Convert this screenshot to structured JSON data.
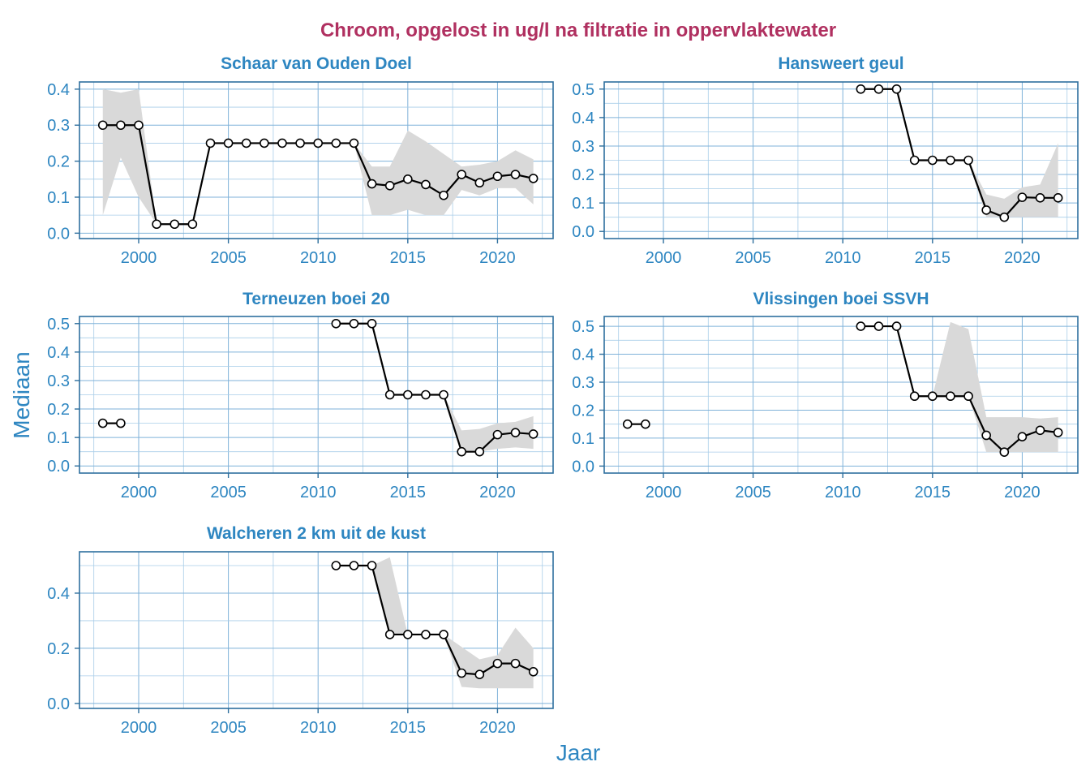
{
  "figure": {
    "title": "Chroom, opgelost in ug/l na filtratie in oppervlaktewater",
    "xlabel": "Jaar",
    "ylabel": "Mediaan"
  },
  "colors": {
    "title": "#b03060",
    "axis_text": "#2e86c1",
    "ribbon": "#d9d9d9",
    "line": "#000000"
  },
  "chart_data": [
    {
      "type": "line",
      "title": "Schaar van Ouden Doel",
      "xlim": [
        1996.7,
        2023.1
      ],
      "ylim": [
        -0.015,
        0.42
      ],
      "x_ticks": [
        2000,
        2005,
        2010,
        2015,
        2020
      ],
      "y_ticks": [
        0.0,
        0.1,
        0.2,
        0.3,
        0.4
      ],
      "y_tick_labels": [
        "0.0",
        "0.1",
        "0.2",
        "0.3",
        "0.4"
      ],
      "series": [
        {
          "x": [
            1998,
            1999,
            2000,
            2001,
            2002,
            2003,
            2004,
            2005,
            2006,
            2007,
            2008,
            2009,
            2010,
            2011,
            2012,
            2013,
            2014,
            2015,
            2016,
            2017,
            2018,
            2019,
            2020,
            2021,
            2022
          ],
          "y": [
            0.3,
            0.3,
            0.3,
            0.025,
            0.025,
            0.025,
            0.25,
            0.25,
            0.25,
            0.25,
            0.25,
            0.25,
            0.25,
            0.25,
            0.25,
            0.137,
            0.132,
            0.15,
            0.135,
            0.105,
            0.163,
            0.14,
            0.158,
            0.163,
            0.152
          ],
          "lower": [
            0.05,
            0.21,
            0.1,
            0.025,
            0.025,
            0.025,
            0.25,
            0.25,
            0.25,
            0.25,
            0.25,
            0.25,
            0.25,
            0.25,
            0.25,
            0.05,
            0.05,
            0.065,
            0.05,
            0.05,
            0.12,
            0.105,
            0.125,
            0.125,
            0.08
          ],
          "upper": [
            0.4,
            0.39,
            0.4,
            0.025,
            0.025,
            0.025,
            0.25,
            0.25,
            0.25,
            0.25,
            0.25,
            0.25,
            0.25,
            0.25,
            0.25,
            0.185,
            0.185,
            0.285,
            0.255,
            0.22,
            0.185,
            0.19,
            0.2,
            0.23,
            0.205
          ]
        }
      ]
    },
    {
      "type": "line",
      "title": "Hansweert geul",
      "xlim": [
        1996.7,
        2023.1
      ],
      "ylim": [
        -0.025,
        0.525
      ],
      "x_ticks": [
        2000,
        2005,
        2010,
        2015,
        2020
      ],
      "y_ticks": [
        0.0,
        0.1,
        0.2,
        0.3,
        0.4,
        0.5
      ],
      "y_tick_labels": [
        "0.0",
        "0.1",
        "0.2",
        "0.3",
        "0.4",
        "0.5"
      ],
      "series": [
        {
          "x": [
            2011,
            2012,
            2013,
            2014,
            2015,
            2016,
            2017,
            2018,
            2019,
            2020,
            2021,
            2022
          ],
          "y": [
            0.5,
            0.5,
            0.5,
            0.25,
            0.25,
            0.25,
            0.25,
            0.075,
            0.05,
            0.12,
            0.118,
            0.118
          ],
          "lower": [
            0.5,
            0.5,
            0.5,
            0.25,
            0.25,
            0.25,
            0.25,
            0.05,
            0.05,
            0.05,
            0.05,
            0.05
          ],
          "upper": [
            0.5,
            0.5,
            0.5,
            0.25,
            0.25,
            0.25,
            0.25,
            0.13,
            0.115,
            0.155,
            0.165,
            0.31
          ]
        }
      ]
    },
    {
      "type": "line",
      "title": "Terneuzen boei 20",
      "xlim": [
        1996.7,
        2023.1
      ],
      "ylim": [
        -0.025,
        0.525
      ],
      "x_ticks": [
        2000,
        2005,
        2010,
        2015,
        2020
      ],
      "y_ticks": [
        0.0,
        0.1,
        0.2,
        0.3,
        0.4,
        0.5
      ],
      "y_tick_labels": [
        "0.0",
        "0.1",
        "0.2",
        "0.3",
        "0.4",
        "0.5"
      ],
      "series": [
        {
          "x": [
            1998,
            1999
          ],
          "y": [
            0.15,
            0.15
          ],
          "lower": [
            0.15,
            0.15
          ],
          "upper": [
            0.15,
            0.15
          ]
        },
        {
          "x": [
            2011,
            2012,
            2013,
            2014,
            2015,
            2016,
            2017,
            2018,
            2019,
            2020,
            2021,
            2022
          ],
          "y": [
            0.5,
            0.5,
            0.5,
            0.25,
            0.25,
            0.25,
            0.25,
            0.05,
            0.05,
            0.11,
            0.117,
            0.112
          ],
          "lower": [
            0.5,
            0.5,
            0.5,
            0.25,
            0.25,
            0.25,
            0.25,
            0.05,
            0.05,
            0.06,
            0.065,
            0.06
          ],
          "upper": [
            0.5,
            0.5,
            0.5,
            0.25,
            0.25,
            0.25,
            0.25,
            0.125,
            0.13,
            0.15,
            0.155,
            0.175
          ]
        }
      ]
    },
    {
      "type": "line",
      "title": "Vlissingen boei SSVH",
      "xlim": [
        1996.7,
        2023.1
      ],
      "ylim": [
        -0.025,
        0.535
      ],
      "x_ticks": [
        2000,
        2005,
        2010,
        2015,
        2020
      ],
      "y_ticks": [
        0.0,
        0.1,
        0.2,
        0.3,
        0.4,
        0.5
      ],
      "y_tick_labels": [
        "0.0",
        "0.1",
        "0.2",
        "0.3",
        "0.4",
        "0.5"
      ],
      "series": [
        {
          "x": [
            1998,
            1999
          ],
          "y": [
            0.15,
            0.15
          ],
          "lower": [
            0.15,
            0.15
          ],
          "upper": [
            0.15,
            0.15
          ]
        },
        {
          "x": [
            2011,
            2012,
            2013,
            2014,
            2015,
            2016,
            2017,
            2018,
            2019,
            2020,
            2021,
            2022
          ],
          "y": [
            0.5,
            0.5,
            0.5,
            0.25,
            0.25,
            0.25,
            0.25,
            0.11,
            0.05,
            0.105,
            0.128,
            0.12
          ],
          "lower": [
            0.5,
            0.5,
            0.5,
            0.25,
            0.25,
            0.25,
            0.25,
            0.05,
            0.05,
            0.05,
            0.05,
            0.05
          ],
          "upper": [
            0.5,
            0.5,
            0.5,
            0.25,
            0.25,
            0.515,
            0.49,
            0.175,
            0.175,
            0.175,
            0.17,
            0.175
          ]
        }
      ]
    },
    {
      "type": "line",
      "title": "Walcheren 2 km uit de kust",
      "xlim": [
        1996.7,
        2023.1
      ],
      "ylim": [
        -0.018,
        0.55
      ],
      "x_ticks": [
        2000,
        2005,
        2010,
        2015,
        2020
      ],
      "y_ticks": [
        0.0,
        0.2,
        0.4
      ],
      "y_tick_labels": [
        "0.0",
        "0.2",
        "0.4"
      ],
      "series": [
        {
          "x": [
            2011,
            2012,
            2013,
            2014,
            2015,
            2016,
            2017,
            2018,
            2019,
            2020,
            2021,
            2022
          ],
          "y": [
            0.5,
            0.5,
            0.5,
            0.25,
            0.25,
            0.25,
            0.25,
            0.11,
            0.105,
            0.145,
            0.145,
            0.115
          ],
          "lower": [
            0.5,
            0.5,
            0.5,
            0.25,
            0.25,
            0.25,
            0.25,
            0.06,
            0.055,
            0.055,
            0.055,
            0.055
          ],
          "upper": [
            0.5,
            0.5,
            0.5,
            0.53,
            0.25,
            0.25,
            0.25,
            0.205,
            0.16,
            0.175,
            0.275,
            0.2
          ]
        }
      ]
    }
  ]
}
